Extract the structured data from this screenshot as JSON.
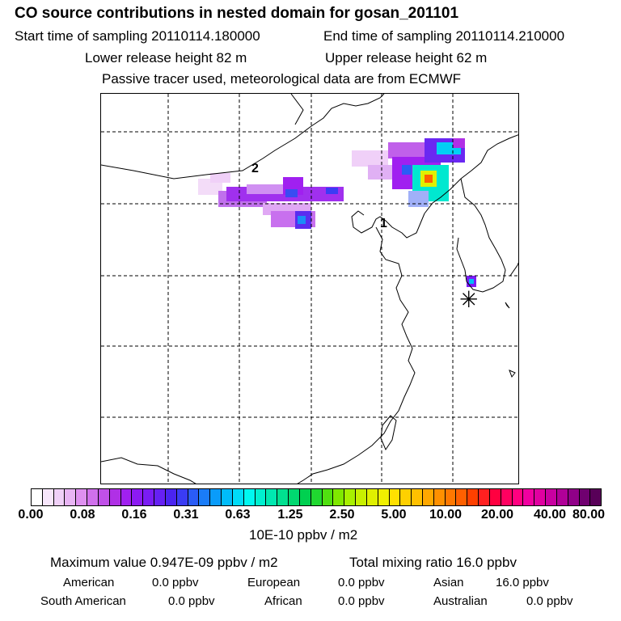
{
  "header": {
    "title": "CO  source contributions in nested domain for gosan_201101",
    "start_time": "Start time of sampling 20110114.180000",
    "end_time": "End time of sampling 20110114.210000",
    "lower_release": "Lower release height   82 m",
    "upper_release": "Upper release height   62 m",
    "tracer_note": "Passive tracer used, meteorological data are from ECMWF"
  },
  "map": {
    "marker_1": "1",
    "marker_2": "2",
    "receptor_symbol": "✳"
  },
  "colorbar": {
    "ticks": [
      "0.00",
      "0.08",
      "0.16",
      "0.31",
      "0.63",
      "1.25",
      "2.50",
      "5.00",
      "10.00",
      "20.00",
      "40.00",
      "80.00"
    ],
    "colors": [
      "#ffffff",
      "#f7e6fb",
      "#f0d0f8",
      "#e8b4f4",
      "#de90f0",
      "#d070ec",
      "#c050e8",
      "#b030e6",
      "#a020f0",
      "#8c1af2",
      "#7a1cf4",
      "#6620f4",
      "#4a24f0",
      "#3a3cf4",
      "#2a5cf6",
      "#1a7cf8",
      "#0a9cfa",
      "#00bcfa",
      "#00dcf8",
      "#00f8f0",
      "#00f0d0",
      "#00e8b0",
      "#00e090",
      "#00d870",
      "#00d050",
      "#20d830",
      "#50e010",
      "#80e800",
      "#a8f000",
      "#c8f000",
      "#e0f000",
      "#f0f000",
      "#ffe000",
      "#ffd000",
      "#ffc000",
      "#ffa800",
      "#ff9000",
      "#ff7800",
      "#ff6000",
      "#ff4000",
      "#ff2020",
      "#ff0040",
      "#ff0060",
      "#ff0080",
      "#f000a0",
      "#e000a0",
      "#c800a0",
      "#b00098",
      "#900088",
      "#700070",
      "#580058"
    ],
    "units": "10E-10 ppbv / m2"
  },
  "summary": {
    "max_value": "Maximum value  0.947E-09 ppbv / m2",
    "total_mixing": "Total mixing ratio       16.0 ppbv",
    "regions": [
      {
        "name": "American",
        "value": "0.0 ppbv"
      },
      {
        "name": "European",
        "value": "0.0 ppbv"
      },
      {
        "name": "Asian",
        "value": "16.0 ppbv"
      },
      {
        "name": "South American",
        "value": "0.0 ppbv"
      },
      {
        "name": "African",
        "value": "0.0 ppbv"
      },
      {
        "name": "Australian",
        "value": "0.0 ppbv"
      }
    ]
  }
}
